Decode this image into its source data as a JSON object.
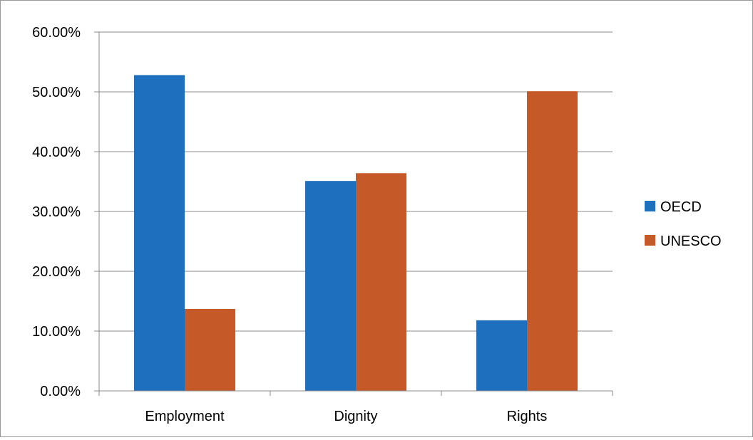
{
  "chart_data": {
    "type": "bar",
    "categories": [
      "Employment",
      "Dignity",
      "Rights"
    ],
    "series": [
      {
        "name": "OECD",
        "color": "#1f6fbf",
        "values": [
          52.8,
          35.1,
          11.8
        ]
      },
      {
        "name": "UNESCO",
        "color": "#c55a28",
        "values": [
          13.7,
          36.4,
          50.1
        ]
      }
    ],
    "y_ticks": [
      "0.00%",
      "10.00%",
      "20.00%",
      "30.00%",
      "40.00%",
      "50.00%",
      "60.00%"
    ],
    "ylim": [
      0,
      60
    ],
    "grid": true,
    "legend_position": "right",
    "title": "",
    "xlabel": "",
    "ylabel": ""
  }
}
